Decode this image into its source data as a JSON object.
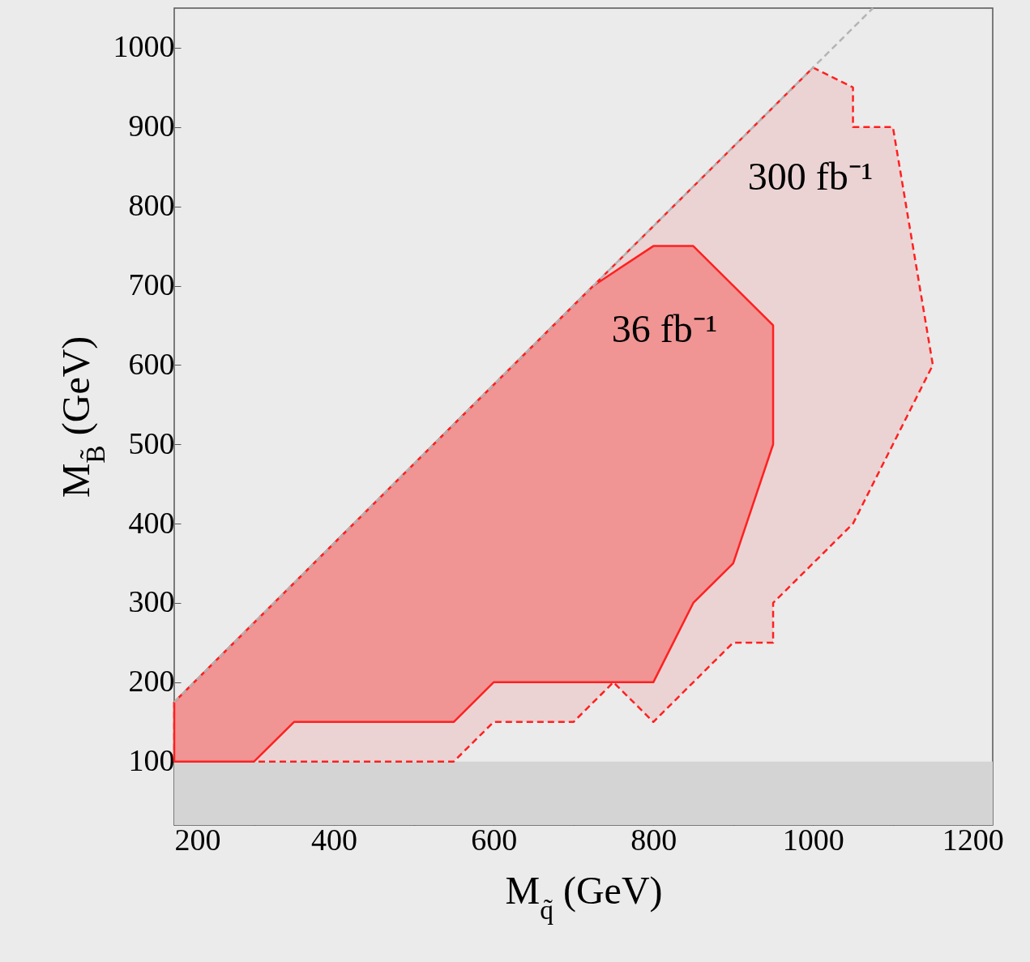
{
  "chart_data": {
    "type": "line",
    "xlabel": "M$_{q̃}$ (GeV)",
    "ylabel": "M$_{B̃}$ (GeV)",
    "xlim": [
      200,
      1225
    ],
    "ylim": [
      20,
      1050
    ],
    "xticks": [
      200,
      {
        "value": 300,
        "label": null
      },
      400,
      {
        "value": 500,
        "label": null
      },
      600,
      {
        "value": 700,
        "label": null
      },
      800,
      {
        "value": 900,
        "label": null
      },
      1000,
      {
        "value": 1100,
        "label": null
      },
      1200
    ],
    "yticks": [
      100,
      200,
      300,
      400,
      500,
      600,
      700,
      800,
      900,
      1000
    ],
    "grid": false,
    "series": [
      {
        "type": "area",
        "color": "#ebd3d3",
        "line_style": "dashed",
        "x": [
          200,
          550,
          600,
          700,
          750,
          800,
          900,
          950,
          950,
          1050,
          1150,
          1100,
          1050,
          1050,
          1000,
          200
        ],
        "values": [
          100,
          100,
          150,
          150,
          200,
          150,
          250,
          250,
          300,
          400,
          600,
          900,
          900,
          950,
          975,
          175
        ]
      },
      {
        "type": "area",
        "color": "#f09494",
        "line_style": "solid",
        "x": [
          200,
          300,
          350,
          550,
          600,
          800,
          850,
          900,
          950,
          950,
          850,
          800,
          725,
          200
        ],
        "values": [
          100,
          100,
          150,
          150,
          200,
          200,
          300,
          350,
          500,
          650,
          750,
          750,
          700,
          175
        ]
      },
      {
        "type": "line",
        "color": "#b4b4b4",
        "line_style": "dashed",
        "x": [
          200,
          1075
        ],
        "values": [
          175,
          1050
        ]
      }
    ],
    "bands": [
      {
        "axis": "y",
        "from": 20,
        "to": 100,
        "color": "#d4d4d4"
      }
    ],
    "annotations": [
      "300 fb⁻¹",
      "36 fb⁻¹"
    ]
  }
}
